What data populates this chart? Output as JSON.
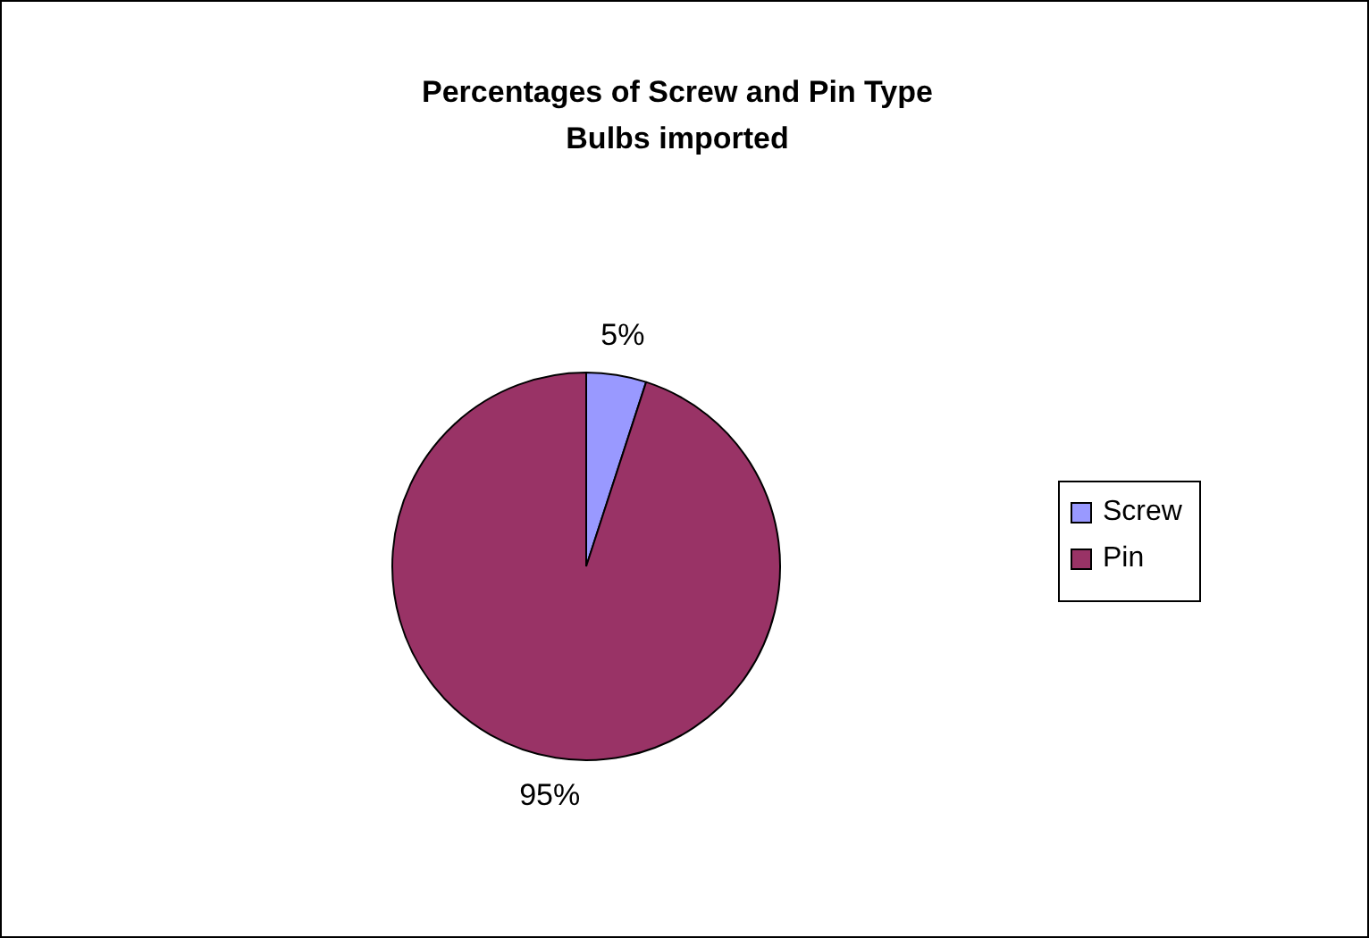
{
  "chart_data": {
    "type": "pie",
    "title": "Percentages of Screw and Pin Type Bulbs imported",
    "categories": [
      "Screw",
      "Pin"
    ],
    "values": [
      5,
      95
    ],
    "colors": [
      "#9999ff",
      "#993366"
    ],
    "value_labels": [
      "5%",
      "95%"
    ],
    "legend": "right"
  }
}
